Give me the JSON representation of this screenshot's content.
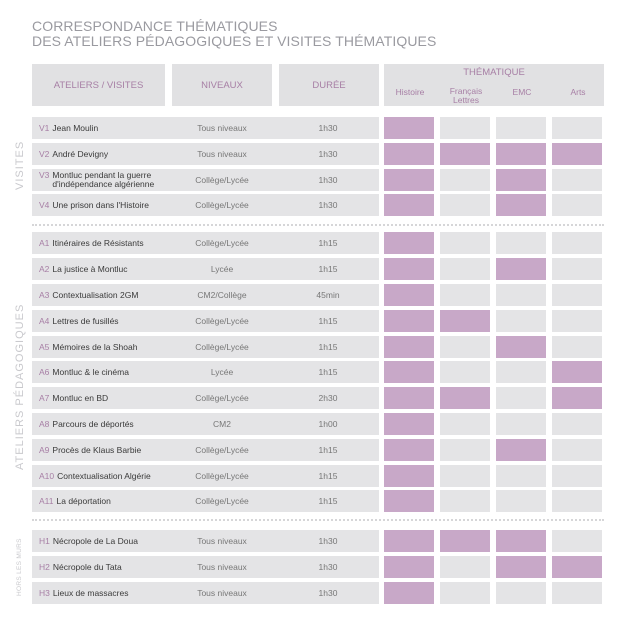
{
  "title_line1": "CORRESPONDANCE THÉMATIQUES",
  "title_line2": "DES ATELIERS PÉDAGOGIQUES ET VISITES THÉMATIQUES",
  "headers": {
    "ateliers": "ATELIERS / VISITES",
    "niveaux": "NIVEAUX",
    "duree": "DURÉE",
    "thematique": "THÉMATIQUE",
    "histoire": "Histoire",
    "francais": "Français",
    "lettres": "Lettres",
    "emc": "EMC",
    "arts": "Arts"
  },
  "sections": {
    "visites": "VISITES",
    "ateliers": "ATELIERS PÉDAGOGIQUES",
    "hors": "HORS LES MURS"
  },
  "rows": [
    {
      "code": "V1",
      "name": "Jean Moulin",
      "name2": "",
      "niveau": "Tous niveaux",
      "duree": "1h30",
      "t": [
        1,
        0,
        0,
        0
      ]
    },
    {
      "code": "V2",
      "name": "André Devigny",
      "name2": "",
      "niveau": "Tous niveaux",
      "duree": "1h30",
      "t": [
        1,
        1,
        1,
        1
      ]
    },
    {
      "code": "V3",
      "name": "Montluc pendant la guerre",
      "name2": "d'indépendance algérienne",
      "niveau": "Collège/Lycée",
      "duree": "1h30",
      "t": [
        1,
        0,
        1,
        0
      ]
    },
    {
      "code": "V4",
      "name": "Une prison dans l'Histoire",
      "name2": "",
      "niveau": "Collège/Lycée",
      "duree": "1h30",
      "t": [
        1,
        0,
        1,
        0
      ]
    },
    {
      "code": "A1",
      "name": "Itinéraires de Résistants",
      "name2": "",
      "niveau": "Collège/Lycée",
      "duree": "1h15",
      "t": [
        1,
        0,
        0,
        0
      ]
    },
    {
      "code": "A2",
      "name": "La justice à Montluc",
      "name2": "",
      "niveau": "Lycée",
      "duree": "1h15",
      "t": [
        1,
        0,
        1,
        0
      ]
    },
    {
      "code": "A3",
      "name": "Contextualisation 2GM",
      "name2": "",
      "niveau": "CM2/Collège",
      "duree": "45min",
      "t": [
        1,
        0,
        0,
        0
      ]
    },
    {
      "code": "A4",
      "name": "Lettres de fusillés",
      "name2": "",
      "niveau": "Collège/Lycée",
      "duree": "1h15",
      "t": [
        1,
        1,
        0,
        0
      ]
    },
    {
      "code": "A5",
      "name": "Mémoires de la Shoah",
      "name2": "",
      "niveau": "Collège/Lycée",
      "duree": "1h15",
      "t": [
        1,
        0,
        1,
        0
      ]
    },
    {
      "code": "A6",
      "name": "Montluc & le cinéma",
      "name2": "",
      "niveau": "Lycée",
      "duree": "1h15",
      "t": [
        1,
        0,
        0,
        1
      ]
    },
    {
      "code": "A7",
      "name": "Montluc en BD",
      "name2": "",
      "niveau": "Collège/Lycée",
      "duree": "2h30",
      "t": [
        1,
        1,
        0,
        1
      ]
    },
    {
      "code": "A8",
      "name": "Parcours de déportés",
      "name2": "",
      "niveau": "CM2",
      "duree": "1h00",
      "t": [
        1,
        0,
        0,
        0
      ]
    },
    {
      "code": "A9",
      "name": "Procès de Klaus Barbie",
      "name2": "",
      "niveau": "Collège/Lycée",
      "duree": "1h15",
      "t": [
        1,
        0,
        1,
        0
      ]
    },
    {
      "code": "A10",
      "name": "Contextualisation Algérie",
      "name2": "",
      "niveau": "Collège/Lycée",
      "duree": "1h15",
      "t": [
        1,
        0,
        0,
        0
      ]
    },
    {
      "code": "A11",
      "name": "La déportation",
      "name2": "",
      "niveau": "Collège/Lycée",
      "duree": "1h15",
      "t": [
        1,
        0,
        0,
        0
      ]
    },
    {
      "code": "H1",
      "name": "Nécropole de La Doua",
      "name2": "",
      "niveau": "Tous niveaux",
      "duree": "1h30",
      "t": [
        1,
        1,
        1,
        0
      ]
    },
    {
      "code": "H2",
      "name": "Nécropole du Tata",
      "name2": "",
      "niveau": "Tous niveaux",
      "duree": "1h30",
      "t": [
        1,
        0,
        1,
        1
      ]
    },
    {
      "code": "H3",
      "name": "Lieux de massacres",
      "name2": "",
      "niveau": "Tous niveaux",
      "duree": "1h30",
      "t": [
        1,
        0,
        0,
        0
      ]
    }
  ],
  "colors": {
    "accent": "#c8a8c8",
    "cell": "#e4e4e6",
    "header_text": "#a77fa5"
  }
}
